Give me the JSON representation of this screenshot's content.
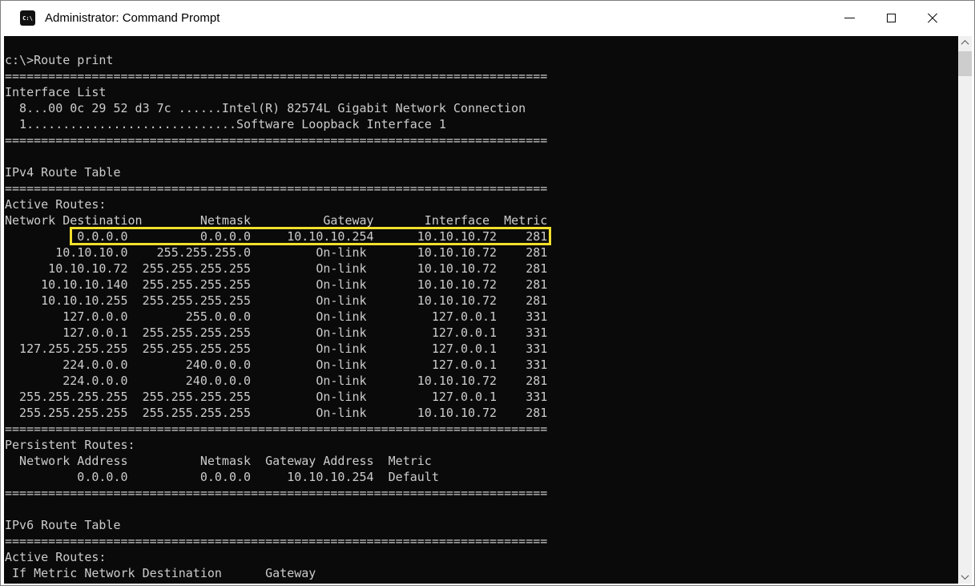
{
  "window": {
    "title": "Administrator: Command Prompt",
    "icon_text": "C:\\"
  },
  "console": {
    "colors": {
      "background": "#0a0a0a",
      "text": "#cccccc",
      "highlight_border": "#f2df2b"
    },
    "prompt_command": "c:\\>Route print",
    "lines": [
      "",
      "c:\\>Route print",
      "===========================================================================",
      "Interface List",
      "  8...00 0c 29 52 d3 7c ......Intel(R) 82574L Gigabit Network Connection",
      "  1.............................Software Loopback Interface 1",
      "===========================================================================",
      "",
      "IPv4 Route Table",
      "===========================================================================",
      "Active Routes:",
      "Network Destination        Netmask          Gateway       Interface  Metric",
      "          0.0.0.0          0.0.0.0     10.10.10.254      10.10.10.72    281",
      "       10.10.10.0    255.255.255.0         On-link       10.10.10.72    281",
      "      10.10.10.72  255.255.255.255         On-link       10.10.10.72    281",
      "     10.10.10.140  255.255.255.255         On-link       10.10.10.72    281",
      "     10.10.10.255  255.255.255.255         On-link       10.10.10.72    281",
      "        127.0.0.0        255.0.0.0         On-link         127.0.0.1    331",
      "        127.0.0.1  255.255.255.255         On-link         127.0.0.1    331",
      "  127.255.255.255  255.255.255.255         On-link         127.0.0.1    331",
      "        224.0.0.0        240.0.0.0         On-link         127.0.0.1    331",
      "        224.0.0.0        240.0.0.0         On-link       10.10.10.72    281",
      "  255.255.255.255  255.255.255.255         On-link         127.0.0.1    331",
      "  255.255.255.255  255.255.255.255         On-link       10.10.10.72    281",
      "===========================================================================",
      "Persistent Routes:",
      "  Network Address          Netmask  Gateway Address  Metric",
      "          0.0.0.0          0.0.0.0     10.10.10.254  Default",
      "===========================================================================",
      "",
      "IPv6 Route Table",
      "===========================================================================",
      "Active Routes:",
      " If Metric Network Destination      Gateway"
    ],
    "interface_list": [
      {
        "if": "8",
        "mac": "00 0c 29 52 d3 7c",
        "name": "Intel(R) 82574L Gigabit Network Connection"
      },
      {
        "if": "1",
        "mac": "",
        "name": "Software Loopback Interface 1"
      }
    ],
    "ipv4_route_table": {
      "section_title": "IPv4 Route Table",
      "subtitle": "Active Routes:",
      "headers": [
        "Network Destination",
        "Netmask",
        "Gateway",
        "Interface",
        "Metric"
      ],
      "rows": [
        [
          "0.0.0.0",
          "0.0.0.0",
          "10.10.10.254",
          "10.10.10.72",
          "281"
        ],
        [
          "10.10.10.0",
          "255.255.255.0",
          "On-link",
          "10.10.10.72",
          "281"
        ],
        [
          "10.10.10.72",
          "255.255.255.255",
          "On-link",
          "10.10.10.72",
          "281"
        ],
        [
          "10.10.10.140",
          "255.255.255.255",
          "On-link",
          "10.10.10.72",
          "281"
        ],
        [
          "10.10.10.255",
          "255.255.255.255",
          "On-link",
          "10.10.10.72",
          "281"
        ],
        [
          "127.0.0.0",
          "255.0.0.0",
          "On-link",
          "127.0.0.1",
          "331"
        ],
        [
          "127.0.0.1",
          "255.255.255.255",
          "On-link",
          "127.0.0.1",
          "331"
        ],
        [
          "127.255.255.255",
          "255.255.255.255",
          "On-link",
          "127.0.0.1",
          "331"
        ],
        [
          "224.0.0.0",
          "240.0.0.0",
          "On-link",
          "127.0.0.1",
          "331"
        ],
        [
          "224.0.0.0",
          "240.0.0.0",
          "On-link",
          "10.10.10.72",
          "281"
        ],
        [
          "255.255.255.255",
          "255.255.255.255",
          "On-link",
          "127.0.0.1",
          "331"
        ],
        [
          "255.255.255.255",
          "255.255.255.255",
          "On-link",
          "10.10.10.72",
          "281"
        ]
      ],
      "highlighted_row": [
        "0.0.0.0",
        "0.0.0.0",
        "10.10.10.254",
        "10.10.10.72",
        "281"
      ]
    },
    "persistent_routes": {
      "section_title": "Persistent Routes:",
      "headers": [
        "Network Address",
        "Netmask",
        "Gateway Address",
        "Metric"
      ],
      "rows": [
        [
          "0.0.0.0",
          "0.0.0.0",
          "10.10.10.254",
          "Default"
        ]
      ]
    },
    "ipv6_route_table": {
      "section_title": "IPv6 Route Table",
      "subtitle": "Active Routes:",
      "headers": [
        "If",
        "Metric",
        "Network Destination",
        "Gateway"
      ],
      "rows": []
    }
  }
}
